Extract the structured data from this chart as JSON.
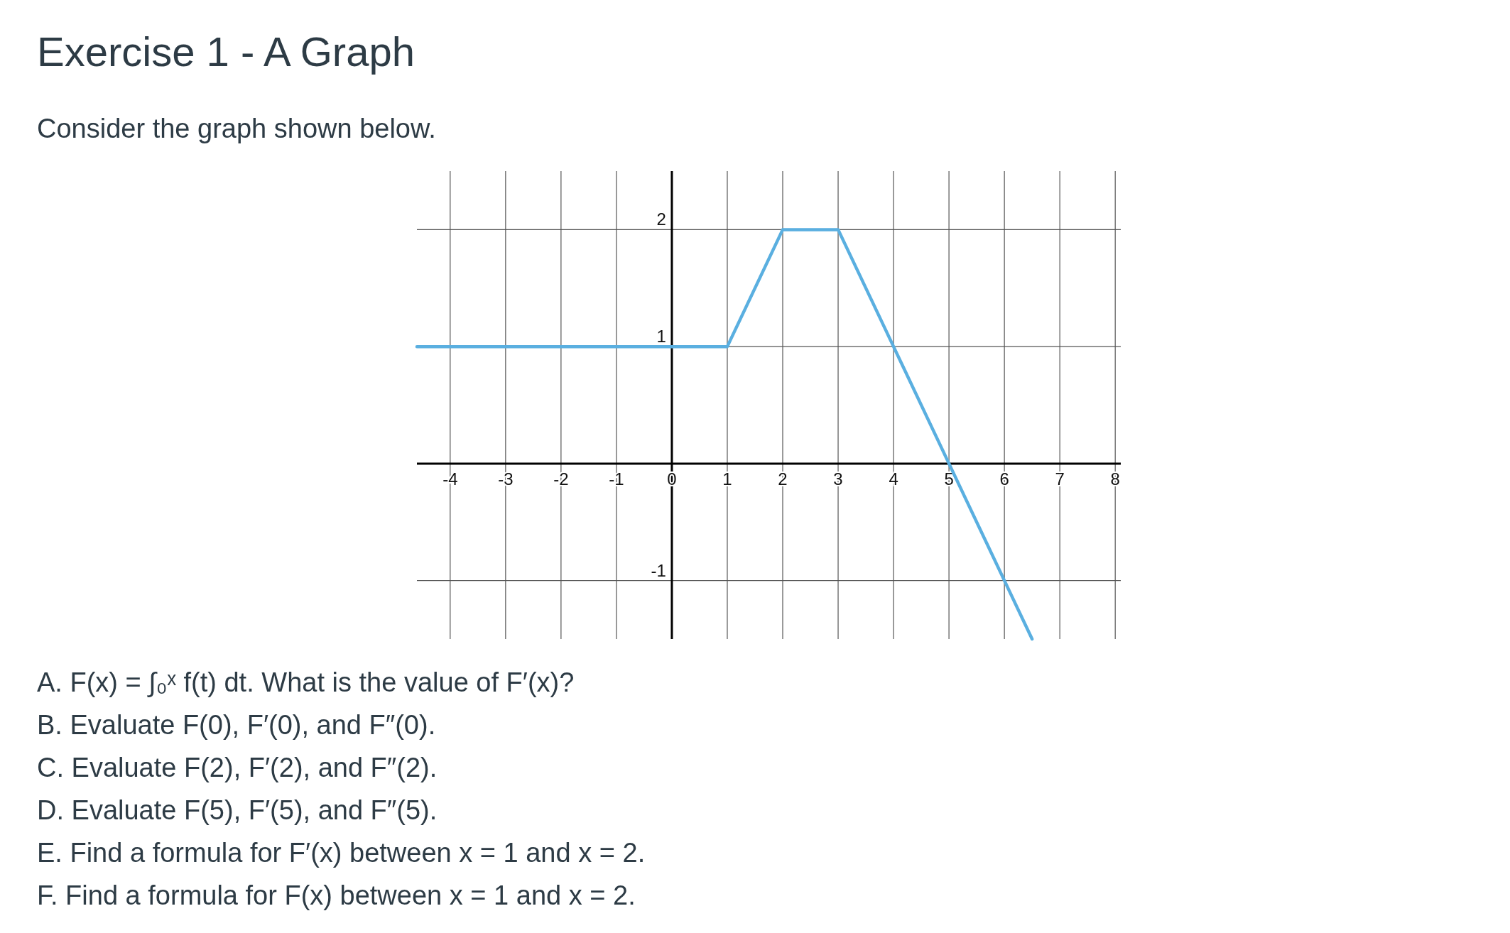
{
  "chart_data": {
    "type": "line",
    "title": "Exercise 1 - A Graph",
    "subtitle": "Consider the graph shown below.",
    "x": [
      -4.6,
      1,
      2,
      3,
      4,
      5,
      6,
      6.5
    ],
    "values": [
      1,
      1,
      2,
      2,
      1,
      0,
      -1,
      -1.5
    ],
    "color": "#5aafe0",
    "xlim": [
      -4.6,
      8.1
    ],
    "ylim": [
      -1.5,
      2.5
    ],
    "xticks": [
      -4,
      -3,
      -2,
      -1,
      0,
      1,
      2,
      3,
      4,
      5,
      6,
      7,
      8
    ],
    "yticks": [
      -1,
      1,
      2
    ],
    "grid": true,
    "annotations": [
      "A. F(x) = ∫₀ˣ f(t) dt. What is the value of F′(x)?",
      "B. Evaluate F(0), F′(0), and F″(0).",
      "C. Evaluate F(2), F′(2), and F″(2).",
      "D. Evaluate F(5), F′(5), and F″(5).",
      "E. Find a formula for F′(x) between x = 1 and x = 2.",
      "F. Find a formula for F(x) between x = 1 and x = 2."
    ]
  }
}
